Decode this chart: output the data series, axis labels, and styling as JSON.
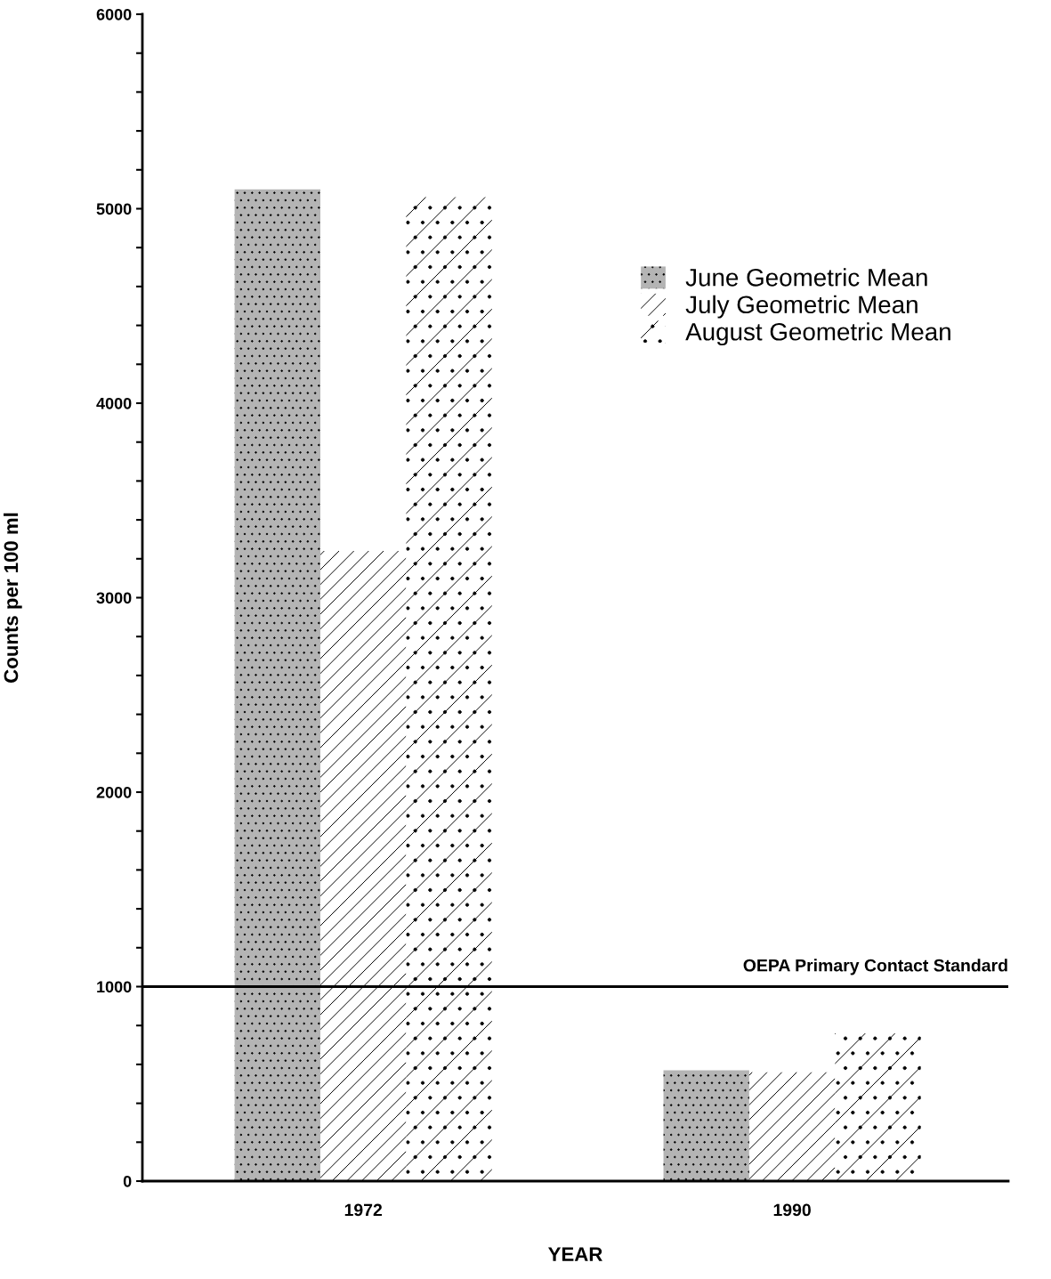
{
  "chart_data": {
    "type": "bar",
    "xlabel": "YEAR",
    "ylabel": "Counts per 100 ml",
    "categories": [
      "1972",
      "1990"
    ],
    "series": [
      {
        "name": "June Geometric Mean",
        "color": "#b4b4b4",
        "values": [
          5100,
          570
        ]
      },
      {
        "name": "July Geometric Mean",
        "color": "#ffffff",
        "values": [
          3240,
          560
        ]
      },
      {
        "name": "August Geometric Mean",
        "color": "#ffffff",
        "values": [
          5060,
          760
        ]
      }
    ],
    "ylim": [
      0,
      6000
    ],
    "yticks": [
      0,
      {
        "value": 200,
        "label": null
      },
      {
        "value": 400,
        "label": null
      },
      {
        "value": 600,
        "label": null
      },
      {
        "value": 800,
        "label": null
      },
      1000,
      {
        "value": 1200,
        "label": null
      },
      {
        "value": 1400,
        "label": null
      },
      {
        "value": 1600,
        "label": null
      },
      {
        "value": 1800,
        "label": null
      },
      2000,
      {
        "value": 2200,
        "label": null
      },
      {
        "value": 2400,
        "label": null
      },
      {
        "value": 2600,
        "label": null
      },
      {
        "value": 2800,
        "label": null
      },
      3000,
      {
        "value": 3200,
        "label": null
      },
      {
        "value": 3400,
        "label": null
      },
      {
        "value": 3600,
        "label": null
      },
      {
        "value": 3800,
        "label": null
      },
      4000,
      {
        "value": 4200,
        "label": null
      },
      {
        "value": 4400,
        "label": null
      },
      {
        "value": 4600,
        "label": null
      },
      {
        "value": 4800,
        "label": null
      },
      5000,
      {
        "value": 5200,
        "label": null
      },
      {
        "value": 5400,
        "label": null
      },
      {
        "value": 5600,
        "label": null
      },
      {
        "value": 5800,
        "label": null
      },
      6000
    ],
    "ref_lines": [
      {
        "axis": "y",
        "value": 1000,
        "label": "OEPA Primary Contact Standard",
        "color": "#000000"
      }
    ],
    "legend": "right",
    "grid": false
  }
}
